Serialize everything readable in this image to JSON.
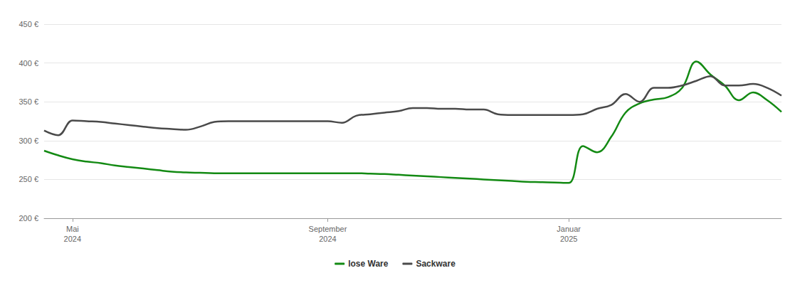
{
  "chart_data": {
    "type": "line",
    "categories": [
      null,
      null,
      "Mai 2024",
      null,
      null,
      null,
      null,
      null,
      null,
      null,
      null,
      null,
      null,
      null,
      null,
      null,
      null,
      null,
      null,
      null,
      "September 2024",
      null,
      null,
      null,
      null,
      null,
      null,
      null,
      null,
      null,
      null,
      null,
      null,
      null,
      null,
      null,
      null,
      "Januar 2025",
      null,
      null,
      null,
      null,
      null,
      null,
      null,
      null,
      null,
      null,
      null,
      null,
      null,
      null,
      null
    ],
    "series": [
      {
        "name": "lose Ware",
        "color": "#138a13",
        "values": [
          287,
          281,
          276,
          273,
          271,
          268,
          266,
          264,
          262,
          260,
          259,
          258.5,
          258,
          258,
          258,
          258,
          258,
          258,
          258,
          258,
          258,
          258,
          258,
          257.5,
          257,
          256,
          255,
          254,
          253,
          252,
          251,
          250,
          249,
          248,
          247,
          246.5,
          246,
          245.5,
          293,
          285,
          305,
          336,
          348,
          353,
          356,
          368,
          402,
          385,
          371,
          352,
          362,
          352,
          337
        ]
      },
      {
        "name": "Sackware",
        "color": "#4a4a4a",
        "values": [
          313,
          307,
          326,
          325,
          324,
          322,
          320,
          318,
          316,
          315,
          314,
          318,
          324,
          325,
          325,
          325,
          325,
          325,
          325,
          325,
          325,
          323,
          332,
          334,
          336,
          338,
          342,
          342,
          341,
          341,
          340,
          340,
          334,
          333,
          333,
          333,
          333,
          333,
          334,
          341,
          346,
          360,
          350,
          368,
          368,
          371,
          377,
          383,
          371,
          371,
          373,
          368,
          358
        ]
      }
    ],
    "ylim": [
      200,
      450
    ],
    "yticks": [
      {
        "value": 200,
        "label": "200 €"
      },
      {
        "value": 250,
        "label": "250 €"
      },
      {
        "value": 300,
        "label": "300 €"
      },
      {
        "value": 350,
        "label": "350 €"
      },
      {
        "value": 400,
        "label": "400 €"
      },
      {
        "value": 450,
        "label": "450 €"
      }
    ],
    "grid": true,
    "legend": "bottom"
  }
}
